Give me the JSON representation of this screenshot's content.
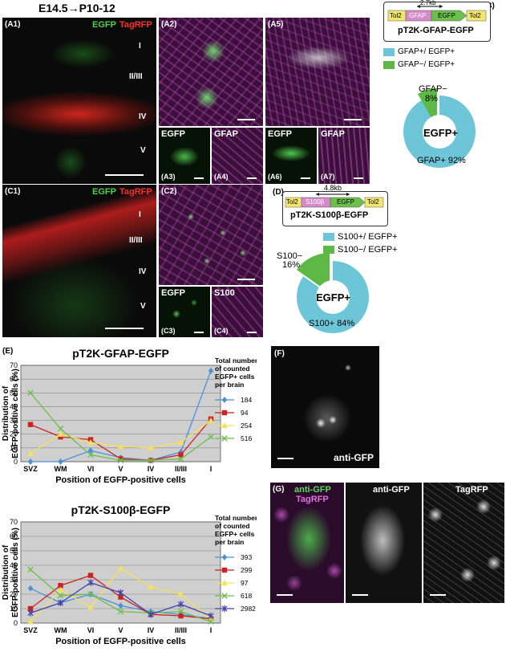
{
  "figure": {
    "title": "E14.5→P10-12",
    "panelA": {
      "a1_label": "(A1)",
      "a1_channel_egfp": "EGFP",
      "a1_channel_tagrfp": "TagRFP",
      "layers": [
        "I",
        "II/III",
        "IV",
        "V"
      ],
      "a2_label": "(A2)",
      "a5_label": "(A5)",
      "a3_label": "(A3)",
      "a3_channel": "EGFP",
      "a4_label": "(A4)",
      "a4_channel": "GFAP",
      "a6_label": "(A6)",
      "a6_channel": "EGFP",
      "a7_label": "(A7)",
      "a7_channel": "GFAP"
    },
    "panelB": {
      "label": "(B)",
      "size_text": "2.7kb",
      "elements": [
        "Tol2",
        "GFAP",
        "EGFP",
        "Tol2"
      ],
      "construct_name": "pT2K-GFAP-EGFP",
      "legend": [
        "GFAP+/ EGFP+",
        "GFAP−/ EGFP+"
      ],
      "donut_center": "EGFP+",
      "slice_small_name": "GFAP−",
      "slice_small_pct": "8%",
      "slice_big_text": "GFAP+ 92%",
      "colors": {
        "pos": "#6CC6D8",
        "neg": "#5DB845"
      }
    },
    "panelC": {
      "c1_label": "(C1)",
      "c1_channel_egfp": "EGFP",
      "c1_channel_tagrfp": "TagRFP",
      "layers": [
        "I",
        "II/III",
        "IV",
        "V"
      ],
      "c2_label": "(C2)",
      "c3_label": "(C3)",
      "c3_channel": "EGFP",
      "c4_label": "(C4)",
      "c4_channel": "S100"
    },
    "panelD": {
      "label": "(D)",
      "size_text": "4.8kb",
      "elements": [
        "Tol2",
        "S100β",
        "EGFP",
        "Tol2"
      ],
      "construct_name": "pT2K-S100β-EGFP",
      "legend": [
        "S100+/ EGFP+",
        "S100−/ EGFP+"
      ],
      "donut_center": "EGFP+",
      "slice_small_name": "S100−",
      "slice_small_pct": "16%",
      "slice_big_text": "S100+ 84%"
    },
    "panelE": {
      "label": "(E)"
    },
    "panelF": {
      "label": "(F)",
      "caption": "anti-GFP"
    },
    "panelG": {
      "label": "(G)",
      "g1_line1": "anti-GFP",
      "g1_line2": "TagRFP",
      "g2_caption": "anti-GFP",
      "g3_caption": "TagRFP"
    }
  },
  "chart_data": [
    {
      "type": "line",
      "title": "pT2K-GFAP-EGFP",
      "xlabel": "Position of EGFP-positive cells",
      "ylabel": "Distribution of EGFP-positive cells (%)",
      "categories": [
        "SVZ",
        "WM",
        "VI",
        "V",
        "IV",
        "II/III",
        "I"
      ],
      "ylim": [
        0,
        70
      ],
      "yticks": [
        0,
        10,
        20,
        30,
        40,
        50,
        60,
        70
      ],
      "grid": true,
      "legend_title": "Total number of counted EGFP+ cells per brain",
      "series": [
        {
          "name": "184",
          "color": "#4A90D9",
          "marker": "diamond",
          "values": [
            0,
            0,
            8,
            3,
            1,
            7,
            66
          ]
        },
        {
          "name": "94",
          "color": "#CC2222",
          "marker": "square",
          "values": [
            27,
            18,
            16,
            2,
            1,
            5,
            31
          ]
        },
        {
          "name": "254",
          "color": "#F5E25A",
          "marker": "triangle",
          "values": [
            6,
            20,
            14,
            11,
            10,
            14,
            30
          ]
        },
        {
          "name": "516",
          "color": "#6BBF4A",
          "marker": "x",
          "values": [
            50,
            24,
            5,
            1,
            1,
            2,
            18
          ]
        }
      ]
    },
    {
      "type": "line",
      "title": "pT2K-S100β-EGFP",
      "xlabel": "Position of EGFP-positive cells",
      "ylabel": "Distribution of EGFP-positive cells (%)",
      "categories": [
        "SVZ",
        "WM",
        "VI",
        "V",
        "IV",
        "II/III",
        "I"
      ],
      "ylim": [
        0,
        70
      ],
      "yticks": [
        0,
        10,
        20,
        30,
        40,
        50,
        60,
        70
      ],
      "grid": true,
      "legend_title": "Total number of counted EGFP+ cells per brain",
      "series": [
        {
          "name": "393",
          "color": "#4A90D9",
          "marker": "diamond",
          "values": [
            24,
            14,
            20,
            12,
            8,
            6,
            3
          ]
        },
        {
          "name": "299",
          "color": "#CC2222",
          "marker": "square",
          "values": [
            10,
            26,
            33,
            18,
            6,
            5,
            3
          ]
        },
        {
          "name": "97",
          "color": "#F5E25A",
          "marker": "triangle",
          "values": [
            1,
            23,
            11,
            38,
            25,
            20,
            3
          ]
        },
        {
          "name": "618",
          "color": "#6BBF4A",
          "marker": "x",
          "values": [
            37,
            19,
            20,
            8,
            7,
            8,
            1
          ]
        },
        {
          "name": "2982",
          "color": "#4444AA",
          "marker": "star",
          "values": [
            7,
            14,
            28,
            21,
            6,
            13,
            5
          ]
        }
      ]
    }
  ]
}
